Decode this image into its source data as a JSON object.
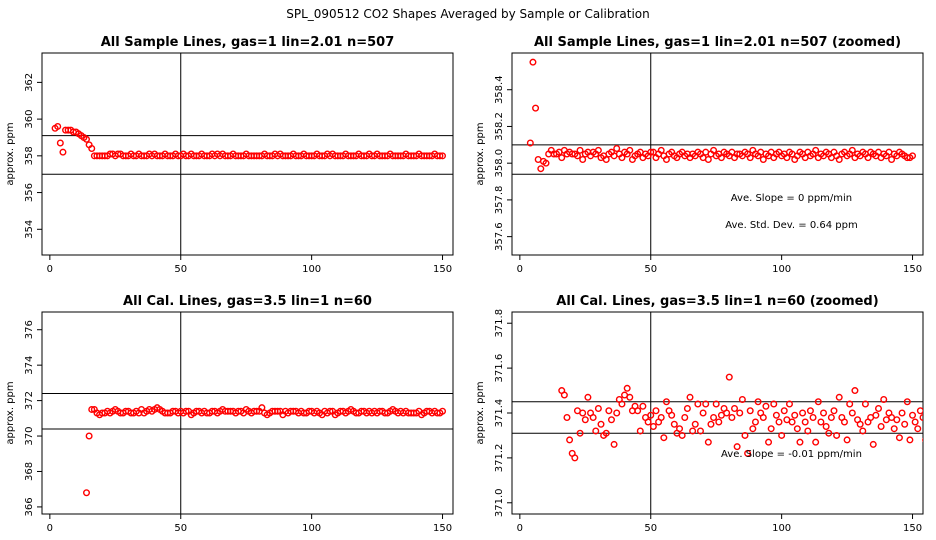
{
  "figure_title": "SPL_090512  CO2 Shapes Averaged by Sample or Calibration",
  "colors": {
    "points": "#ff0000",
    "axes": "#000000",
    "background": "#ffffff"
  },
  "chart_data": [
    {
      "type": "scatter",
      "title": "All Sample Lines, gas=1 lin=2.01 n=507",
      "xlabel": "",
      "ylabel": "approx. ppm",
      "xlim": [
        -3,
        154
      ],
      "ylim": [
        352.6,
        363.6
      ],
      "xticks": [
        0,
        50,
        100,
        150
      ],
      "yticks": [
        354,
        356,
        358,
        360,
        362
      ],
      "hlines": [
        359.1,
        357.0
      ],
      "vline": 50,
      "grid": false,
      "annotations": [],
      "series": [
        {
          "marker": "circle",
          "x_start": 2,
          "x_step": 1,
          "y": [
            359.5,
            359.6,
            358.7,
            358.2,
            359.4,
            359.4,
            359.4,
            359.3,
            359.3,
            359.2,
            359.1,
            359.0,
            358.9,
            358.6,
            358.4,
            358.0,
            358.0,
            358.0,
            358.0,
            358.0,
            358.0,
            358.1,
            358.1,
            358.0,
            358.1,
            358.1,
            358.0,
            358.0,
            358.0,
            358.1,
            358.0,
            358.0,
            358.1,
            358.0,
            358.0,
            358.0,
            358.1,
            358.0,
            358.1,
            358.0,
            358.0,
            358.0,
            358.1,
            358.0,
            358.0,
            358.0,
            358.1,
            358.0,
            358.0,
            358.1,
            358.0,
            358.0,
            358.1,
            358.0,
            358.0,
            358.0,
            358.1,
            358.0,
            358.0,
            358.0,
            358.1,
            358.0,
            358.1,
            358.0,
            358.1,
            358.0,
            358.0,
            358.0,
            358.1,
            358.0,
            358.0,
            358.0,
            358.0,
            358.1,
            358.0,
            358.0,
            358.0,
            358.0,
            358.0,
            358.0,
            358.1,
            358.0,
            358.0,
            358.0,
            358.1,
            358.0,
            358.1,
            358.0,
            358.0,
            358.0,
            358.0,
            358.1,
            358.0,
            358.0,
            358.0,
            358.1,
            358.0,
            358.0,
            358.0,
            358.0,
            358.1,
            358.0,
            358.0,
            358.0,
            358.1,
            358.0,
            358.1,
            358.0,
            358.0,
            358.0,
            358.0,
            358.1,
            358.0,
            358.0,
            358.0,
            358.0,
            358.1,
            358.0,
            358.0,
            358.0,
            358.1,
            358.0,
            358.0,
            358.1,
            358.0,
            358.0,
            358.0,
            358.0,
            358.1,
            358.0,
            358.0,
            358.0,
            358.0,
            358.0,
            358.1,
            358.0,
            358.0,
            358.0,
            358.0,
            358.1,
            358.0,
            358.0,
            358.0,
            358.0,
            358.0,
            358.1,
            358.0,
            358.0,
            358.0
          ]
        }
      ]
    },
    {
      "type": "scatter",
      "title": "All Sample Lines, gas=1 lin=2.01 n=507 (zoomed)",
      "xlabel": "",
      "ylabel": "approx. ppm",
      "xlim": [
        -3,
        154
      ],
      "ylim": [
        357.5,
        358.6
      ],
      "xticks": [
        0,
        50,
        100,
        150
      ],
      "yticks": [
        357.6,
        357.8,
        358.0,
        358.2,
        358.4
      ],
      "ytick_labels": [
        "357.6",
        "357.8",
        "358.0",
        "358.2",
        "358.4"
      ],
      "hlines": [
        358.1,
        357.94
      ],
      "vline": 50,
      "grid": false,
      "annotations": [
        "Ave. Slope =  0  ppm/min",
        "Ave. Std. Dev. =  0.64  ppm"
      ],
      "series": [
        {
          "marker": "circle",
          "x_start": 4,
          "x_step": 1,
          "y": [
            358.11,
            358.55,
            358.3,
            358.02,
            357.97,
            358.01,
            358.0,
            358.05,
            358.07,
            358.05,
            358.05,
            358.06,
            358.03,
            358.07,
            358.05,
            358.06,
            358.05,
            358.05,
            358.04,
            358.07,
            358.02,
            358.05,
            358.06,
            358.04,
            358.06,
            358.05,
            358.07,
            358.03,
            358.04,
            358.02,
            358.05,
            358.06,
            358.04,
            358.08,
            358.05,
            358.03,
            358.06,
            358.05,
            358.07,
            358.02,
            358.04,
            358.05,
            358.06,
            358.03,
            358.05,
            358.04,
            358.06,
            358.06,
            358.03,
            358.05,
            358.07,
            358.04,
            358.02,
            358.05,
            358.06,
            358.04,
            358.03,
            358.05,
            358.06,
            358.04,
            358.05,
            358.03,
            358.05,
            358.04,
            358.06,
            358.05,
            358.03,
            358.06,
            358.02,
            358.05,
            358.07,
            358.04,
            358.05,
            358.03,
            358.06,
            358.05,
            358.04,
            358.06,
            358.03,
            358.05,
            358.05,
            358.04,
            358.06,
            358.05,
            358.03,
            358.07,
            358.05,
            358.04,
            358.06,
            358.02,
            358.05,
            358.04,
            358.06,
            358.03,
            358.05,
            358.06,
            358.04,
            358.05,
            358.03,
            358.06,
            358.05,
            358.02,
            358.04,
            358.06,
            358.05,
            358.03,
            358.06,
            358.04,
            358.05,
            358.07,
            358.03,
            358.05,
            358.04,
            358.06,
            358.05,
            358.03,
            358.06,
            358.04,
            358.02,
            358.05,
            358.06,
            358.04,
            358.05,
            358.07,
            358.03,
            358.05,
            358.04,
            358.06,
            358.05,
            358.03,
            358.06,
            358.05,
            358.04,
            358.06,
            358.03,
            358.05,
            358.04,
            358.06,
            358.02,
            358.05,
            358.04,
            358.06,
            358.05,
            358.04,
            358.03,
            358.03,
            358.04
          ]
        }
      ]
    },
    {
      "type": "scatter",
      "title": "All Cal. Lines, gas=3.5 lin=1 n=60",
      "xlabel": "",
      "ylabel": "approx. ppm",
      "xlim": [
        -3,
        154
      ],
      "ylim": [
        365.6,
        377.0
      ],
      "xticks": [
        0,
        50,
        100,
        150
      ],
      "yticks": [
        366,
        368,
        370,
        372,
        374,
        376
      ],
      "hlines": [
        372.4,
        370.4
      ],
      "vline": 50,
      "grid": false,
      "annotations": [],
      "series": [
        {
          "marker": "circle",
          "x_start": 14,
          "x_step": 1,
          "y": [
            366.8,
            370.0,
            371.5,
            371.5,
            371.3,
            371.2,
            371.3,
            371.3,
            371.4,
            371.3,
            371.4,
            371.5,
            371.4,
            371.3,
            371.3,
            371.4,
            371.4,
            371.3,
            371.3,
            371.4,
            371.3,
            371.5,
            371.3,
            371.4,
            371.5,
            371.4,
            371.5,
            371.6,
            371.5,
            371.4,
            371.3,
            371.3,
            371.3,
            371.4,
            371.4,
            371.3,
            371.4,
            371.3,
            371.4,
            371.4,
            371.2,
            371.3,
            371.4,
            371.4,
            371.3,
            371.4,
            371.3,
            371.3,
            371.4,
            371.4,
            371.3,
            371.4,
            371.5,
            371.4,
            371.4,
            371.4,
            371.4,
            371.3,
            371.4,
            371.4,
            371.3,
            371.5,
            371.4,
            371.3,
            371.4,
            371.4,
            371.4,
            371.6,
            371.3,
            371.2,
            371.3,
            371.4,
            371.4,
            371.4,
            371.4,
            371.2,
            371.4,
            371.3,
            371.4,
            371.4,
            371.4,
            371.3,
            371.4,
            371.3,
            371.3,
            371.4,
            371.4,
            371.3,
            371.4,
            371.3,
            371.2,
            371.4,
            371.3,
            371.4,
            371.4,
            371.2,
            371.3,
            371.4,
            371.4,
            371.3,
            371.4,
            371.5,
            371.4,
            371.3,
            371.3,
            371.4,
            371.4,
            371.3,
            371.4,
            371.3,
            371.4,
            371.3,
            371.4,
            371.4,
            371.3,
            371.3,
            371.4,
            371.5,
            371.4,
            371.3,
            371.4,
            371.3,
            371.4,
            371.3,
            371.3,
            371.3,
            371.3,
            371.4,
            371.2,
            371.3,
            371.4,
            371.4,
            371.3,
            371.4,
            371.3,
            371.3,
            371.4
          ]
        }
      ]
    },
    {
      "type": "scatter",
      "title": "All Cal. Lines, gas=3.5 lin=1 n=60 (zoomed)",
      "xlabel": "",
      "ylabel": "approx. ppm",
      "xlim": [
        -3,
        154
      ],
      "ylim": [
        370.95,
        371.85
      ],
      "xticks": [
        0,
        50,
        100,
        150
      ],
      "yticks": [
        371.0,
        371.2,
        371.4,
        371.6,
        371.8
      ],
      "ytick_labels": [
        "371.0",
        "371.2",
        "371.4",
        "371.6",
        "371.8"
      ],
      "hlines": [
        371.45,
        371.31
      ],
      "vline": 50,
      "grid": false,
      "annotations": [
        "Ave. Slope =  -0.01  ppm/min"
      ],
      "series": [
        {
          "marker": "circle",
          "x_start": 16,
          "x_step": 1,
          "y": [
            371.5,
            371.48,
            371.38,
            371.28,
            371.22,
            371.2,
            371.41,
            371.31,
            371.4,
            371.37,
            371.47,
            371.4,
            371.38,
            371.32,
            371.42,
            371.35,
            371.3,
            371.31,
            371.41,
            371.37,
            371.26,
            371.4,
            371.46,
            371.44,
            371.48,
            371.51,
            371.47,
            371.41,
            371.43,
            371.41,
            371.32,
            371.43,
            371.38,
            371.36,
            371.39,
            371.34,
            371.41,
            371.36,
            371.38,
            371.29,
            371.45,
            371.41,
            371.39,
            371.35,
            371.31,
            371.33,
            371.3,
            371.38,
            371.42,
            371.47,
            371.32,
            371.35,
            371.44,
            371.32,
            371.4,
            371.44,
            371.27,
            371.35,
            371.38,
            371.44,
            371.36,
            371.39,
            371.42,
            371.4,
            371.56,
            371.38,
            371.42,
            371.25,
            371.4,
            371.46,
            371.3,
            371.22,
            371.41,
            371.33,
            371.36,
            371.45,
            371.4,
            371.38,
            371.43,
            371.27,
            371.33,
            371.44,
            371.39,
            371.36,
            371.3,
            371.41,
            371.37,
            371.44,
            371.36,
            371.39,
            371.33,
            371.27,
            371.4,
            371.36,
            371.32,
            371.41,
            371.38,
            371.27,
            371.45,
            371.36,
            371.4,
            371.34,
            371.31,
            371.38,
            371.41,
            371.3,
            371.47,
            371.38,
            371.36,
            371.28,
            371.44,
            371.4,
            371.5,
            371.37,
            371.35,
            371.32,
            371.44,
            371.36,
            371.38,
            371.26,
            371.39,
            371.42,
            371.34,
            371.46,
            371.37,
            371.4,
            371.38,
            371.33,
            371.37,
            371.29,
            371.4,
            371.35,
            371.45,
            371.28,
            371.39,
            371.36,
            371.33,
            371.41,
            371.38,
            371.28
          ]
        }
      ]
    }
  ]
}
